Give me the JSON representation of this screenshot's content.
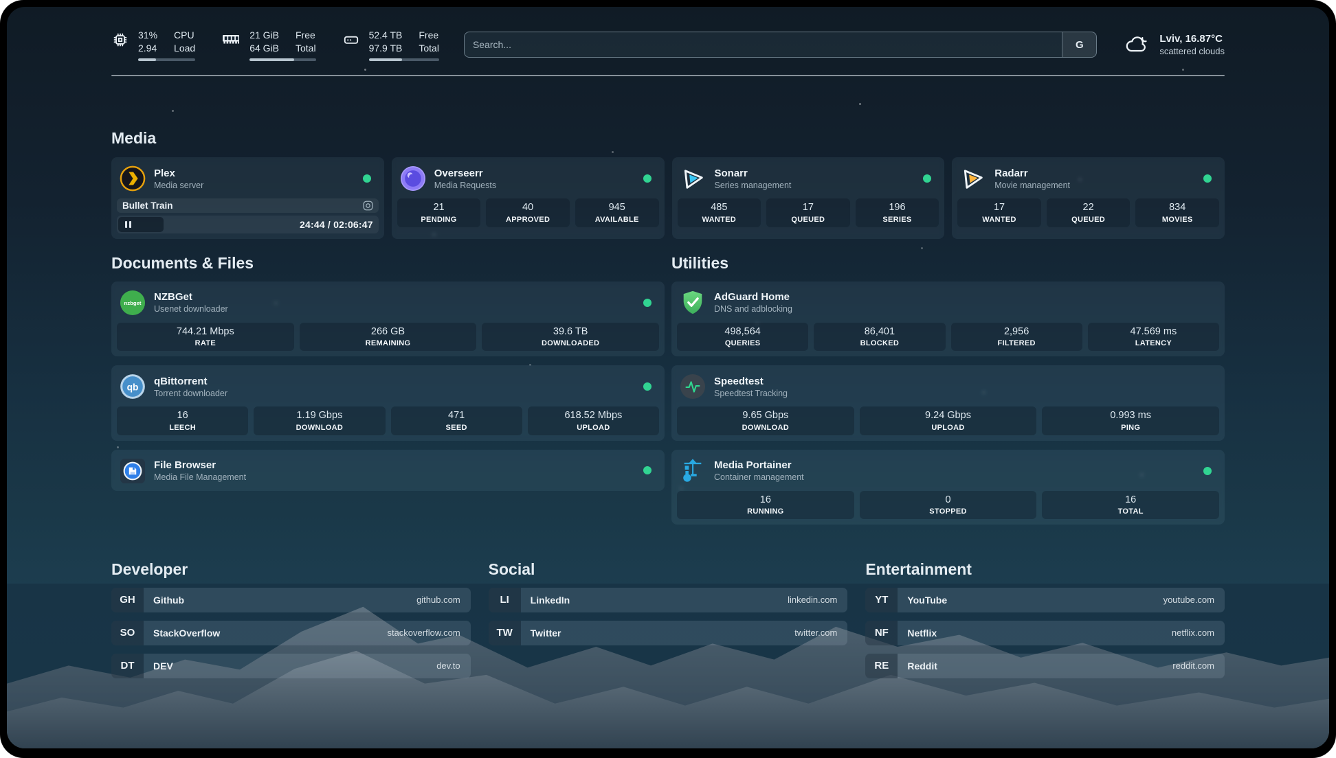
{
  "header": {
    "resources": [
      {
        "icon": "cpu-icon",
        "values": [
          "31%",
          "2.94"
        ],
        "labels": [
          "CPU",
          "Load"
        ],
        "progress": 31
      },
      {
        "icon": "memory-icon",
        "values": [
          "21 GiB",
          "64 GiB"
        ],
        "labels": [
          "Free",
          "Total"
        ],
        "progress": 67
      },
      {
        "icon": "disk-icon",
        "values": [
          "52.4 TB",
          "97.9 TB"
        ],
        "labels": [
          "Free",
          "Total"
        ],
        "progress": 47
      }
    ],
    "search": {
      "placeholder": "Search...",
      "provider_label": "G"
    },
    "weather": {
      "icon": "cloud-moon-icon",
      "location": "Lviv, 16.87°C",
      "condition": "scattered clouds"
    }
  },
  "sections": {
    "media": {
      "title": "Media",
      "cards": {
        "plex": {
          "name": "Plex",
          "subtitle": "Media server",
          "now_playing": "Bullet Train",
          "time": "24:44 / 02:06:47"
        },
        "overseerr": {
          "name": "Overseerr",
          "subtitle": "Media Requests",
          "stats": [
            {
              "value": "21",
              "label": "PENDING"
            },
            {
              "value": "40",
              "label": "APPROVED"
            },
            {
              "value": "945",
              "label": "AVAILABLE"
            }
          ]
        },
        "sonarr": {
          "name": "Sonarr",
          "subtitle": "Series management",
          "stats": [
            {
              "value": "485",
              "label": "WANTED"
            },
            {
              "value": "17",
              "label": "QUEUED"
            },
            {
              "value": "196",
              "label": "SERIES"
            }
          ]
        },
        "radarr": {
          "name": "Radarr",
          "subtitle": "Movie management",
          "stats": [
            {
              "value": "17",
              "label": "WANTED"
            },
            {
              "value": "22",
              "label": "QUEUED"
            },
            {
              "value": "834",
              "label": "MOVIES"
            }
          ]
        }
      }
    },
    "documents": {
      "title": "Documents & Files",
      "cards": {
        "nzbget": {
          "name": "NZBGet",
          "subtitle": "Usenet downloader",
          "logo_text": "nzbget",
          "stats": [
            {
              "value": "744.21 Mbps",
              "label": "RATE"
            },
            {
              "value": "266 GB",
              "label": "REMAINING"
            },
            {
              "value": "39.6 TB",
              "label": "DOWNLOADED"
            }
          ]
        },
        "qbittorrent": {
          "name": "qBittorrent",
          "subtitle": "Torrent downloader",
          "logo_text": "qb",
          "stats": [
            {
              "value": "16",
              "label": "LEECH"
            },
            {
              "value": "1.19 Gbps",
              "label": "DOWNLOAD"
            },
            {
              "value": "471",
              "label": "SEED"
            },
            {
              "value": "618.52 Mbps",
              "label": "UPLOAD"
            }
          ]
        },
        "filebrowser": {
          "name": "File Browser",
          "subtitle": "Media File Management"
        }
      }
    },
    "utilities": {
      "title": "Utilities",
      "cards": {
        "adguard": {
          "name": "AdGuard Home",
          "subtitle": "DNS and adblocking",
          "stats": [
            {
              "value": "498,564",
              "label": "QUERIES"
            },
            {
              "value": "86,401",
              "label": "BLOCKED"
            },
            {
              "value": "2,956",
              "label": "FILTERED"
            },
            {
              "value": "47.569 ms",
              "label": "LATENCY"
            }
          ]
        },
        "speedtest": {
          "name": "Speedtest",
          "subtitle": "Speedtest Tracking",
          "stats": [
            {
              "value": "9.65 Gbps",
              "label": "DOWNLOAD"
            },
            {
              "value": "9.24 Gbps",
              "label": "UPLOAD"
            },
            {
              "value": "0.993 ms",
              "label": "PING"
            }
          ]
        },
        "portainer": {
          "name": "Media Portainer",
          "subtitle": "Container management",
          "stats": [
            {
              "value": "16",
              "label": "RUNNING"
            },
            {
              "value": "0",
              "label": "STOPPED"
            },
            {
              "value": "16",
              "label": "TOTAL"
            }
          ]
        }
      }
    }
  },
  "bookmarks": {
    "groups": [
      {
        "title": "Developer",
        "items": [
          {
            "abbr": "GH",
            "name": "Github",
            "url": "github.com"
          },
          {
            "abbr": "SO",
            "name": "StackOverflow",
            "url": "stackoverflow.com"
          },
          {
            "abbr": "DT",
            "name": "DEV",
            "url": "dev.to"
          }
        ]
      },
      {
        "title": "Social",
        "items": [
          {
            "abbr": "LI",
            "name": "LinkedIn",
            "url": "linkedin.com"
          },
          {
            "abbr": "TW",
            "name": "Twitter",
            "url": "twitter.com"
          }
        ]
      },
      {
        "title": "Entertainment",
        "items": [
          {
            "abbr": "YT",
            "name": "YouTube",
            "url": "youtube.com"
          },
          {
            "abbr": "NF",
            "name": "Netflix",
            "url": "netflix.com"
          },
          {
            "abbr": "RE",
            "name": "Reddit",
            "url": "reddit.com"
          }
        ]
      }
    ]
  },
  "colors": {
    "online_dot": "#31d492",
    "plex_accent": "#e5a00d",
    "sonarr_accent": "#39c6f4",
    "radarr_accent": "#ffb53c",
    "portainer_accent": "#29a9e2",
    "adguard_accent": "#4fc468",
    "speedtest_accent": "#2fd78f"
  }
}
